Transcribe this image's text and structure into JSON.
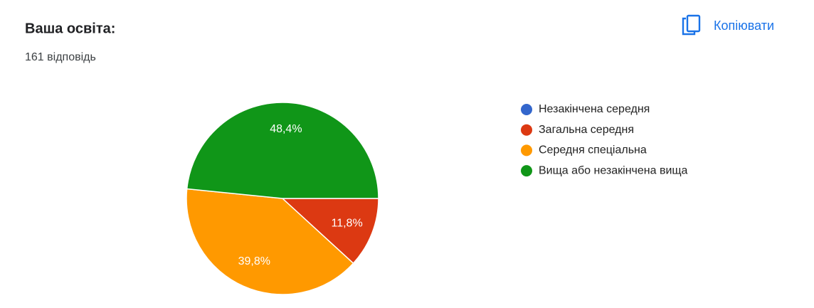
{
  "header": {
    "copy_button": "Копіювати"
  },
  "chart_data": {
    "type": "pie",
    "title": "Ваша освіта:",
    "subtitle": "161 відповідь",
    "categories": [
      "Незакінчена середня",
      "Загальна середня",
      "Середня спеціальна",
      "Вища або незакінчена вища"
    ],
    "values": [
      0,
      11.8,
      39.8,
      48.4
    ],
    "value_labels": [
      null,
      "11,8%",
      "39,8%",
      "48,4%"
    ],
    "colors": [
      "#3366cc",
      "#dc3912",
      "#ff9900",
      "#109618"
    ],
    "legend": "right"
  }
}
